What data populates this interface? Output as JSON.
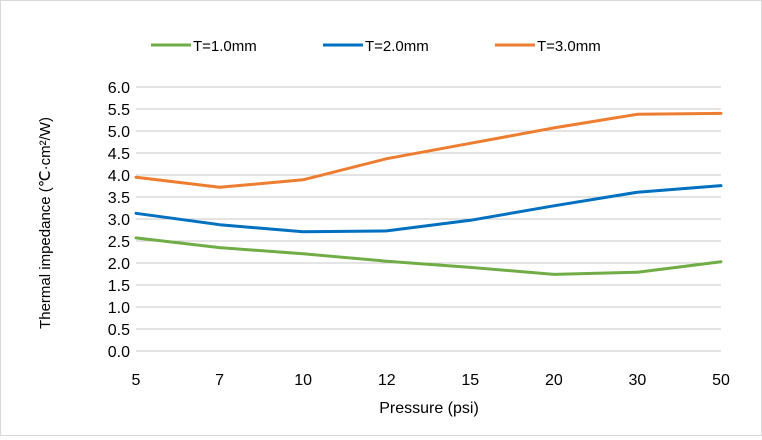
{
  "chart_data": {
    "type": "line",
    "categories": [
      "5",
      "7",
      "10",
      "12",
      "15",
      "20",
      "30",
      "50"
    ],
    "series": [
      {
        "name": "T=1.0mm",
        "color": "#70ad47",
        "values": [
          2.57,
          2.35,
          2.21,
          2.04,
          1.9,
          1.74,
          1.79,
          2.03
        ]
      },
      {
        "name": "T=2.0mm",
        "color": "#0070c0",
        "values": [
          3.13,
          2.87,
          2.71,
          2.73,
          2.97,
          3.3,
          3.61,
          3.76
        ]
      },
      {
        "name": "T=3.0mm",
        "color": "#ed7d31",
        "values": [
          3.95,
          3.72,
          3.89,
          4.37,
          4.72,
          5.07,
          5.38,
          5.4
        ]
      }
    ],
    "xlabel": "Pressure (psi)",
    "ylabel": "Thermal impedance (℃·cm²/W)",
    "ylim": [
      0.0,
      6.0
    ],
    "ytick_labels": [
      "0.0",
      "0.5",
      "1.0",
      "1.5",
      "2.0",
      "2.5",
      "3.0",
      "3.5",
      "4.0",
      "4.5",
      "5.0",
      "5.5",
      "6.0"
    ],
    "grid": true,
    "legend_position": "top"
  }
}
